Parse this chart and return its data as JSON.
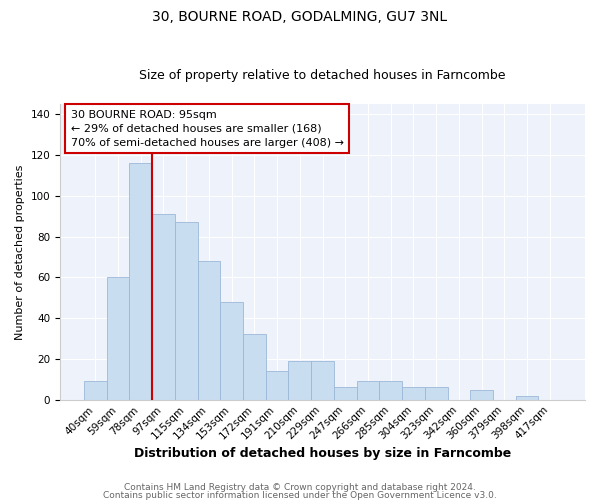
{
  "title": "30, BOURNE ROAD, GODALMING, GU7 3NL",
  "subtitle": "Size of property relative to detached houses in Farncombe",
  "xlabel": "Distribution of detached houses by size in Farncombe",
  "ylabel": "Number of detached properties",
  "bar_labels": [
    "40sqm",
    "59sqm",
    "78sqm",
    "97sqm",
    "115sqm",
    "134sqm",
    "153sqm",
    "172sqm",
    "191sqm",
    "210sqm",
    "229sqm",
    "247sqm",
    "266sqm",
    "285sqm",
    "304sqm",
    "323sqm",
    "342sqm",
    "360sqm",
    "379sqm",
    "398sqm",
    "417sqm"
  ],
  "bar_values": [
    9,
    60,
    116,
    91,
    87,
    68,
    48,
    32,
    14,
    19,
    19,
    6,
    9,
    9,
    6,
    6,
    0,
    5,
    0,
    2,
    0
  ],
  "bar_color": "#c9ddf0",
  "bar_edge_color": "#9bb8d8",
  "vline_x_index": 3,
  "vline_color": "#cc0000",
  "ylim": [
    0,
    145
  ],
  "yticks": [
    0,
    20,
    40,
    60,
    80,
    100,
    120,
    140
  ],
  "annotation_text": "30 BOURNE ROAD: 95sqm\n← 29% of detached houses are smaller (168)\n70% of semi-detached houses are larger (408) →",
  "annotation_box_color": "#ffffff",
  "annotation_box_edge": "#cc0000",
  "plot_bg_color": "#eef3fb",
  "footer1": "Contains HM Land Registry data © Crown copyright and database right 2024.",
  "footer2": "Contains public sector information licensed under the Open Government Licence v3.0.",
  "title_fontsize": 10,
  "subtitle_fontsize": 9,
  "xlabel_fontsize": 9,
  "ylabel_fontsize": 8,
  "tick_fontsize": 7.5,
  "annotation_fontsize": 8,
  "footer_fontsize": 6.5
}
